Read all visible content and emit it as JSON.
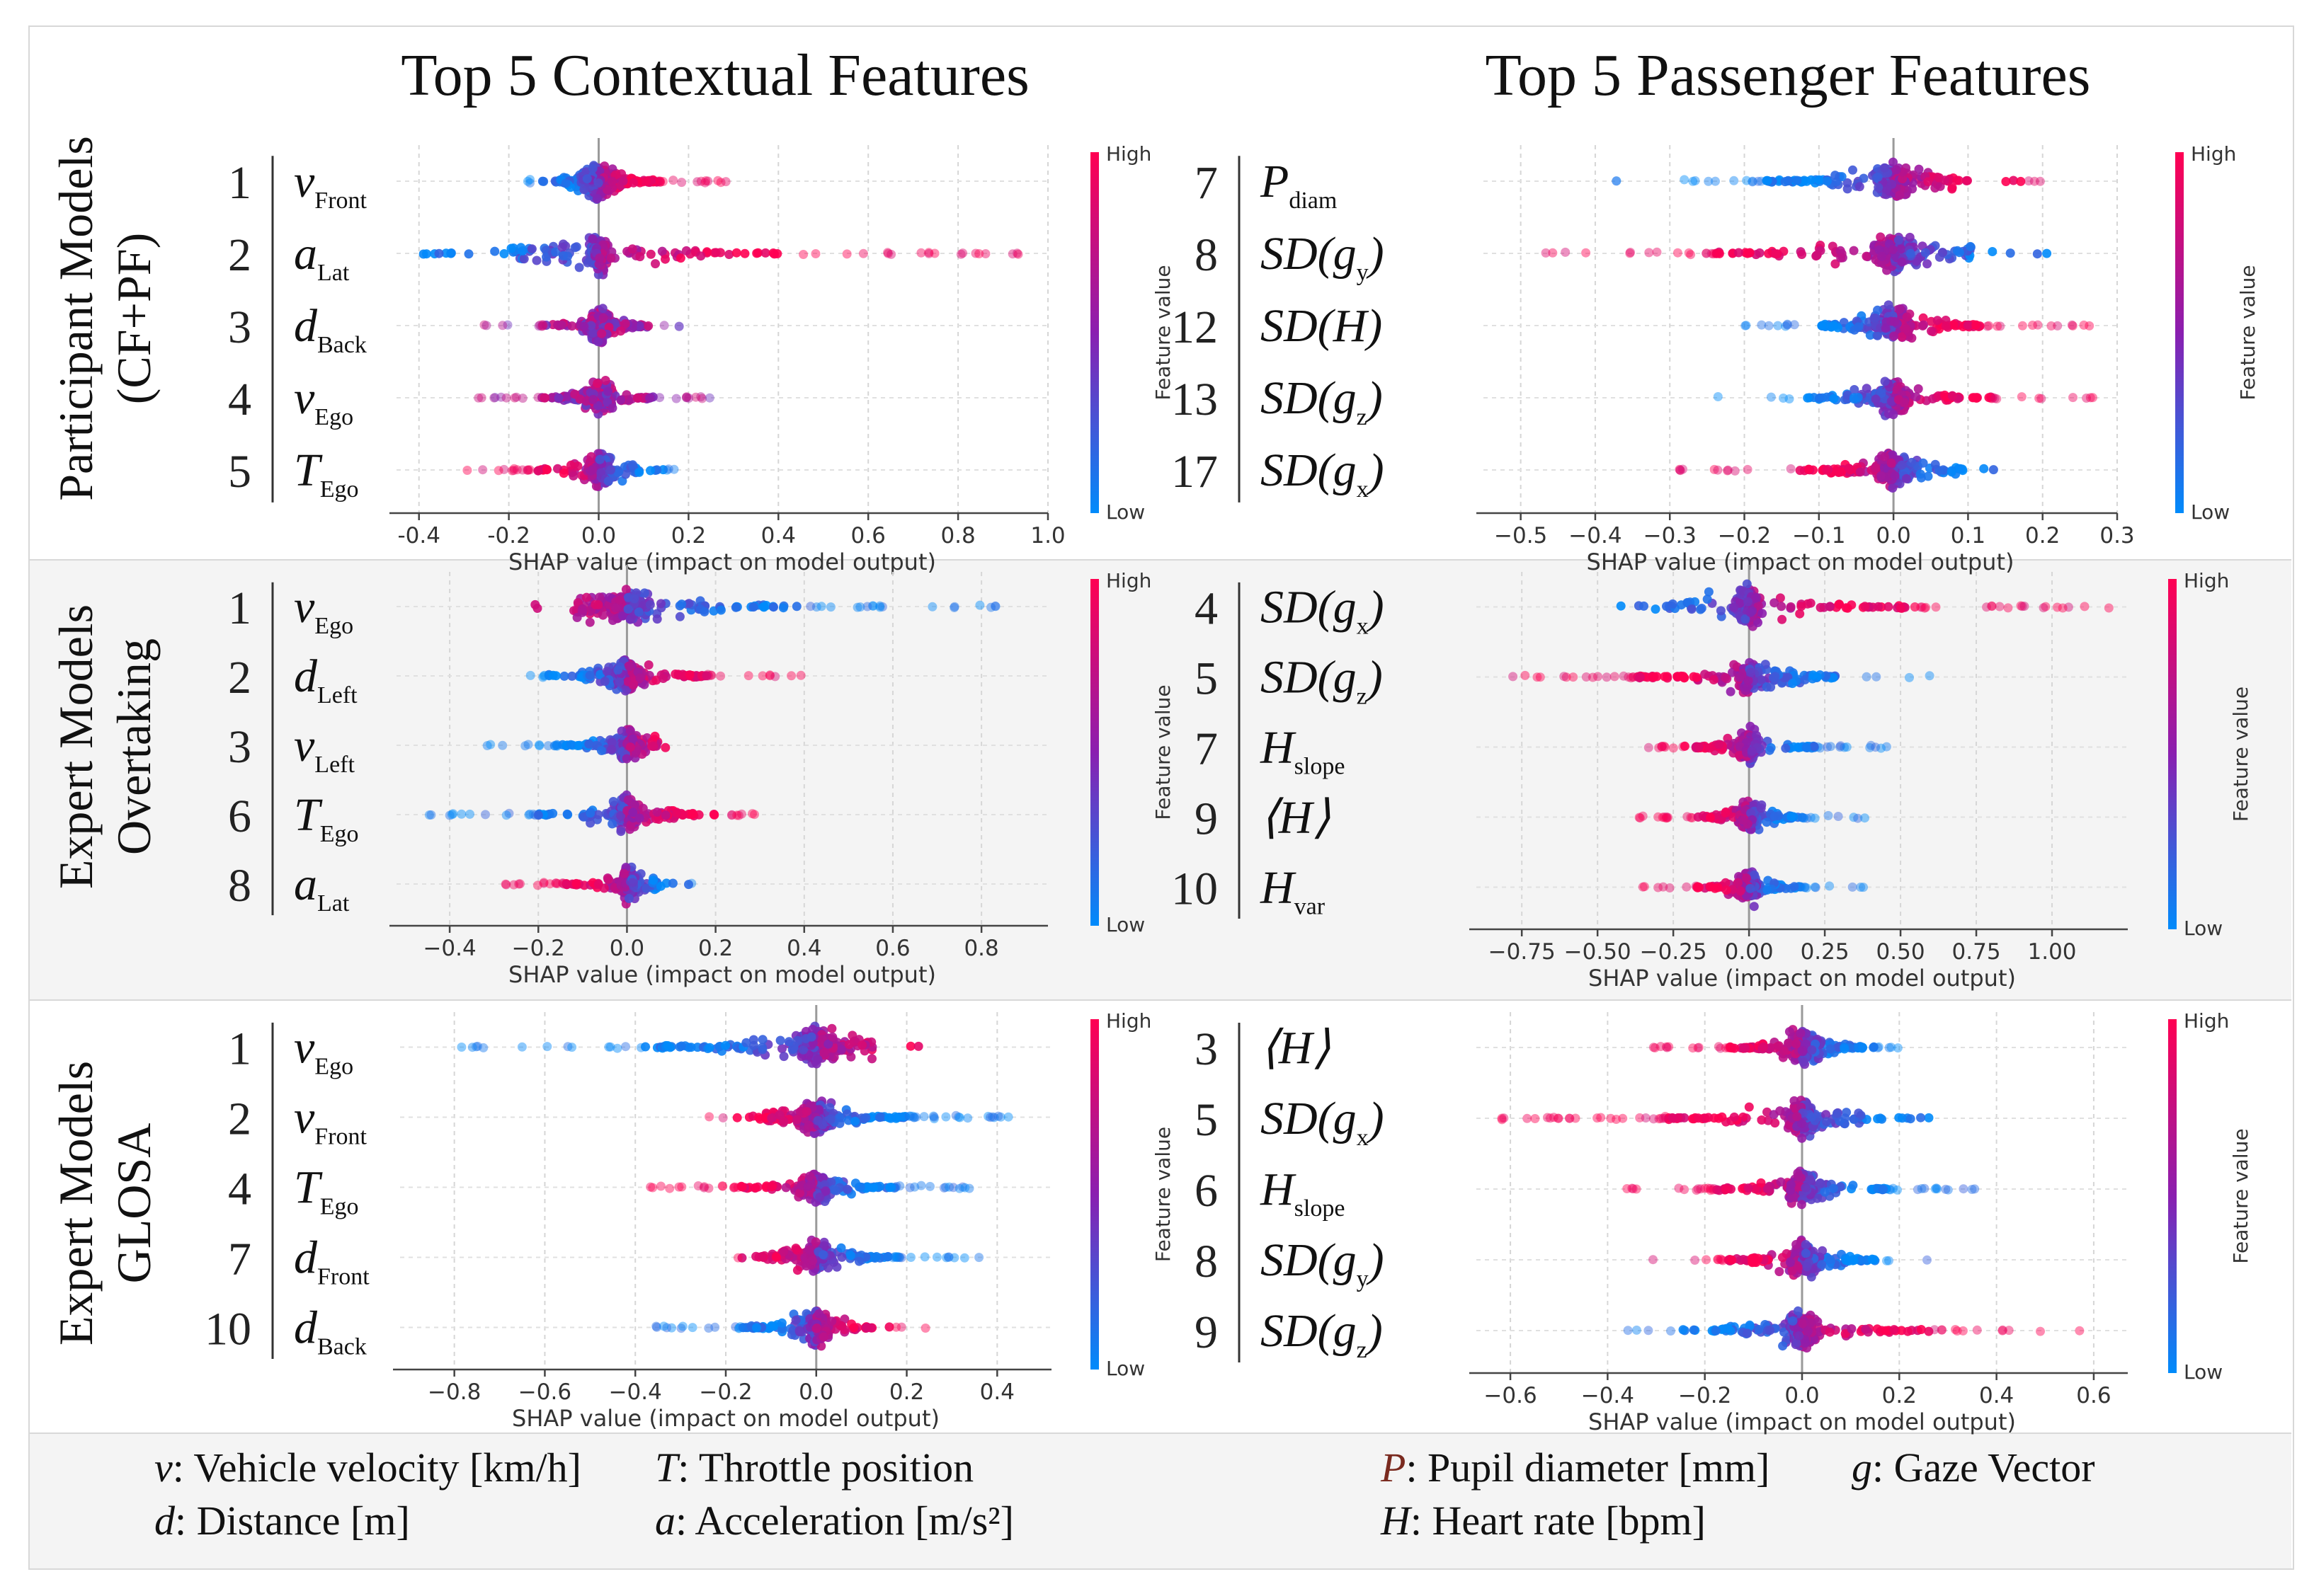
{
  "column_titles": [
    "Top 5 Contextual Features",
    "Top 5 Passenger  Features"
  ],
  "row_labels": [
    [
      "Participant Models",
      "(CF+PF)"
    ],
    [
      "Expert Models",
      "Overtaking"
    ],
    [
      "Expert Models",
      "GLOSA"
    ]
  ],
  "colorbar": {
    "high": "High",
    "low": "Low",
    "title": "Feature value",
    "high_color": "#ff0052",
    "mid_color": "#8a1fb0",
    "low_color": "#008bfb"
  },
  "xlabel": "SHAP value (impact on model output)",
  "chart_data": [
    {
      "type": "scatter",
      "subtype": "shap-beeswarm",
      "xlim": [
        -0.45,
        1.0
      ],
      "xticks": [
        "-0.4",
        "-0.2",
        "0.0",
        "0.2",
        "0.4",
        "0.6",
        "0.8",
        "1.0"
      ],
      "xtick_values": [
        -0.4,
        -0.2,
        0.0,
        0.2,
        0.4,
        0.6,
        0.8,
        1.0
      ],
      "xlabel": "SHAP value (impact on model output)",
      "features": [
        {
          "rank": "1",
          "sym": "v",
          "sub": "Front",
          "min": -0.17,
          "max": 0.29,
          "core": 0.07,
          "hi_side": 1,
          "density": 1.0
        },
        {
          "rank": "2",
          "sym": "a",
          "sub": "Lat",
          "min": -0.39,
          "max": 0.95,
          "core": 0.03,
          "hi_side": 1,
          "density": 0.9
        },
        {
          "rank": "3",
          "sym": "d",
          "sub": "Back",
          "min": -0.27,
          "max": 0.2,
          "core": 0.05,
          "hi_side": 0,
          "density": 0.8
        },
        {
          "rank": "4",
          "sym": "v",
          "sub": "Ego",
          "min": -0.28,
          "max": 0.29,
          "core": 0.05,
          "hi_side": 0,
          "density": 0.8
        },
        {
          "rank": "5",
          "sym": "T",
          "sub": "Ego",
          "min": -0.32,
          "max": 0.17,
          "core": 0.05,
          "hi_side": -1,
          "density": 0.7
        }
      ]
    },
    {
      "type": "scatter",
      "subtype": "shap-beeswarm",
      "xlim": [
        -0.55,
        0.3
      ],
      "xticks": [
        "−0.5",
        "−0.4",
        "−0.3",
        "−0.2",
        "−0.1",
        "0.0",
        "0.1",
        "0.2",
        "0.3"
      ],
      "xtick_values": [
        -0.5,
        -0.4,
        -0.3,
        -0.2,
        -0.1,
        0.0,
        0.1,
        0.2,
        0.3
      ],
      "xlabel": "SHAP value (impact on model output)",
      "features": [
        {
          "rank": "7",
          "sym": "P",
          "sub": "diam",
          "min": -0.38,
          "max": 0.2,
          "core": 0.04,
          "hi_side": 1,
          "density": 1.0
        },
        {
          "rank": "8",
          "sym": "SD(g",
          "sub": "y",
          "close": ")",
          "min": -0.53,
          "max": 0.22,
          "core": 0.04,
          "hi_side": -1,
          "density": 1.0
        },
        {
          "rank": "12",
          "sym": "SD(H)",
          "sub": "",
          "min": -0.2,
          "max": 0.27,
          "core": 0.04,
          "hi_side": 1,
          "density": 0.9
        },
        {
          "rank": "13",
          "sym": "SD(g",
          "sub": "z",
          "close": ")",
          "min": -0.24,
          "max": 0.29,
          "core": 0.04,
          "hi_side": 1,
          "density": 0.9
        },
        {
          "rank": "17",
          "sym": "SD(g",
          "sub": "x",
          "close": ")",
          "min": -0.3,
          "max": 0.19,
          "core": 0.04,
          "hi_side": -1,
          "density": 0.9
        }
      ]
    },
    {
      "type": "scatter",
      "subtype": "shap-beeswarm",
      "xlim": [
        -0.52,
        0.95
      ],
      "xticks": [
        "−0.4",
        "−0.2",
        "0.0",
        "0.2",
        "0.4",
        "0.6",
        "0.8"
      ],
      "xtick_values": [
        -0.4,
        -0.2,
        0.0,
        0.2,
        0.4,
        0.6,
        0.8
      ],
      "xlabel": "SHAP value (impact on model output)",
      "features": [
        {
          "rank": "1",
          "sym": "v",
          "sub": "Ego",
          "min": -0.23,
          "max": 0.88,
          "core": 0.08,
          "hi_side": -1,
          "density": 1.0
        },
        {
          "rank": "2",
          "sym": "d",
          "sub": "Left",
          "min": -0.22,
          "max": 0.4,
          "core": 0.06,
          "hi_side": 1,
          "density": 1.0
        },
        {
          "rank": "3",
          "sym": "v",
          "sub": "Left",
          "min": -0.33,
          "max": 0.14,
          "core": 0.04,
          "hi_side": 1,
          "density": 0.8
        },
        {
          "rank": "6",
          "sym": "T",
          "sub": "Ego",
          "min": -0.45,
          "max": 0.32,
          "core": 0.05,
          "hi_side": 1,
          "density": 0.8
        },
        {
          "rank": "8",
          "sym": "a",
          "sub": "Lat",
          "min": -0.31,
          "max": 0.16,
          "core": 0.04,
          "hi_side": -1,
          "density": 0.7
        }
      ]
    },
    {
      "type": "scatter",
      "subtype": "shap-beeswarm",
      "xlim": [
        -0.9,
        1.25
      ],
      "xticks": [
        "−0.75",
        "−0.50",
        "−0.25",
        "0.00",
        "0.25",
        "0.50",
        "0.75",
        "1.00"
      ],
      "xtick_values": [
        -0.75,
        -0.5,
        -0.25,
        0.0,
        0.25,
        0.5,
        0.75,
        1.0
      ],
      "xlabel": "SHAP value (impact on model output)",
      "features": [
        {
          "rank": "4",
          "sym": "SD(g",
          "sub": "x",
          "close": ")",
          "min": -0.55,
          "max": 1.2,
          "core": 0.06,
          "hi_side": 1,
          "density": 0.9
        },
        {
          "rank": "5",
          "sym": "SD(g",
          "sub": "z",
          "close": ")",
          "min": -0.82,
          "max": 0.6,
          "core": 0.06,
          "hi_side": -1,
          "density": 0.9
        },
        {
          "rank": "7",
          "sym": "H",
          "sub": "slope",
          "min": -0.35,
          "max": 0.48,
          "core": 0.06,
          "hi_side": -1,
          "density": 0.8
        },
        {
          "rank": "9",
          "sym": "⟨H⟩",
          "sub": "",
          "min": -0.4,
          "max": 0.4,
          "core": 0.06,
          "hi_side": -1,
          "density": 0.8
        },
        {
          "rank": "10",
          "sym": "H",
          "sub": "var",
          "min": -0.36,
          "max": 0.38,
          "core": 0.06,
          "hi_side": -1,
          "density": 0.7
        }
      ]
    },
    {
      "type": "scatter",
      "subtype": "shap-beeswarm",
      "xlim": [
        -0.92,
        0.52
      ],
      "xticks": [
        "−0.8",
        "−0.6",
        "−0.4",
        "−0.2",
        "0.0",
        "0.2",
        "0.4"
      ],
      "xtick_values": [
        -0.8,
        -0.6,
        -0.4,
        -0.2,
        0.0,
        0.2,
        0.4
      ],
      "xlabel": "SHAP value (impact on model output)",
      "features": [
        {
          "rank": "1",
          "sym": "v",
          "sub": "Ego",
          "min": -0.86,
          "max": 0.25,
          "core": 0.08,
          "hi_side": 1,
          "density": 1.0
        },
        {
          "rank": "2",
          "sym": "v",
          "sub": "Front",
          "min": -0.25,
          "max": 0.45,
          "core": 0.07,
          "hi_side": -1,
          "density": 1.0
        },
        {
          "rank": "4",
          "sym": "T",
          "sub": "Ego",
          "min": -0.37,
          "max": 0.37,
          "core": 0.05,
          "hi_side": -1,
          "density": 0.9
        },
        {
          "rank": "7",
          "sym": "d",
          "sub": "Front",
          "min": -0.2,
          "max": 0.37,
          "core": 0.05,
          "hi_side": -1,
          "density": 0.9
        },
        {
          "rank": "10",
          "sym": "d",
          "sub": "Back",
          "min": -0.36,
          "max": 0.27,
          "core": 0.05,
          "hi_side": 1,
          "density": 0.9
        }
      ]
    },
    {
      "type": "scatter",
      "subtype": "shap-beeswarm",
      "xlim": [
        -0.67,
        0.67
      ],
      "xticks": [
        "−0.6",
        "−0.4",
        "−0.2",
        "0.0",
        "0.2",
        "0.4",
        "0.6"
      ],
      "xtick_values": [
        -0.6,
        -0.4,
        -0.2,
        0.0,
        0.2,
        0.4,
        0.6
      ],
      "xlabel": "SHAP value (impact on model output)",
      "features": [
        {
          "rank": "3",
          "sym": "⟨H⟩",
          "sub": "",
          "min": -0.33,
          "max": 0.25,
          "core": 0.05,
          "hi_side": -1,
          "density": 1.0
        },
        {
          "rank": "5",
          "sym": "SD(g",
          "sub": "x",
          "close": ")",
          "min": -0.62,
          "max": 0.27,
          "core": 0.05,
          "hi_side": -1,
          "density": 1.0
        },
        {
          "rank": "6",
          "sym": "H",
          "sub": "slope",
          "min": -0.39,
          "max": 0.38,
          "core": 0.05,
          "hi_side": -1,
          "density": 0.9
        },
        {
          "rank": "8",
          "sym": "SD(g",
          "sub": "y",
          "close": ")",
          "min": -0.36,
          "max": 0.31,
          "core": 0.05,
          "hi_side": -1,
          "density": 0.9
        },
        {
          "rank": "9",
          "sym": "SD(g",
          "sub": "z",
          "close": ")",
          "min": -0.36,
          "max": 0.6,
          "core": 0.05,
          "hi_side": 1,
          "density": 0.9
        }
      ]
    }
  ],
  "legend": {
    "left": [
      {
        "sym": "v",
        "text": ": Vehicle velocity [km/h]"
      },
      {
        "sym": "T",
        "text": ": Throttle position"
      },
      {
        "sym": "d",
        "text": ": Distance [m]"
      },
      {
        "sym": "a",
        "text": ": Acceleration [m/s²]"
      }
    ],
    "right": [
      {
        "sym": "P",
        "text": ": Pupil diameter [mm]"
      },
      {
        "sym": "g",
        "text": ": Gaze Vector"
      },
      {
        "sym": "H",
        "text": ": Heart rate [bpm]"
      }
    ]
  }
}
